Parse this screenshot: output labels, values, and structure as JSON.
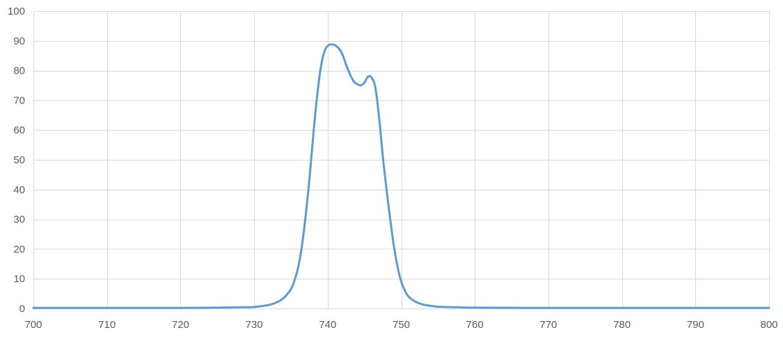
{
  "chart_data": {
    "type": "line",
    "title": "",
    "xlabel": "",
    "ylabel": "",
    "xlim": [
      700,
      800
    ],
    "ylim": [
      0,
      100
    ],
    "x_ticks": [
      700,
      710,
      720,
      730,
      740,
      750,
      760,
      770,
      780,
      790,
      800
    ],
    "y_ticks": [
      0,
      10,
      20,
      30,
      40,
      50,
      60,
      70,
      80,
      90,
      100
    ],
    "grid": true,
    "legend": "none",
    "series": [
      {
        "color": "#5b9bd5",
        "x": [
          700,
          710,
          720,
          725,
          728,
          730,
          731,
          732,
          733,
          734,
          735,
          735.5,
          736,
          736.5,
          737,
          737.5,
          738,
          738.5,
          739,
          739.5,
          740,
          740.5,
          741,
          741.5,
          742,
          742.5,
          743,
          743.5,
          744,
          744.5,
          745,
          745.5,
          746,
          746.5,
          747,
          747.5,
          748,
          748.5,
          749,
          749.5,
          750,
          750.5,
          751,
          752,
          753,
          754,
          755,
          756,
          758,
          760,
          770,
          780,
          790,
          800
        ],
        "y": [
          0.2,
          0.2,
          0.2,
          0.3,
          0.4,
          0.5,
          0.8,
          1.2,
          2,
          3.5,
          6.5,
          9.5,
          14,
          21,
          31,
          43,
          57,
          70,
          80,
          86,
          88.3,
          88.8,
          88.5,
          87.5,
          85.5,
          82,
          79,
          76.5,
          75.5,
          75,
          76,
          78,
          77.5,
          74,
          64,
          51,
          40,
          30,
          21,
          14,
          9,
          6,
          4,
          2.2,
          1.3,
          0.9,
          0.6,
          0.5,
          0.4,
          0.3,
          0.2,
          0.2,
          0.2,
          0.2
        ]
      }
    ]
  }
}
